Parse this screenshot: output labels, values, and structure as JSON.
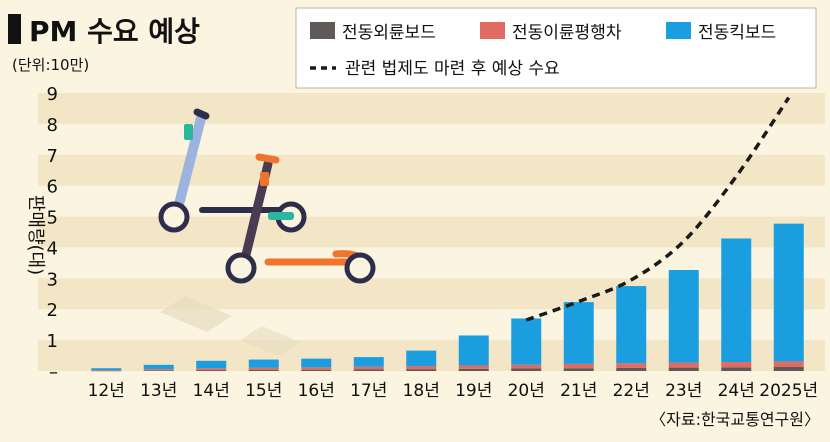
{
  "header": {
    "title": "PM 수요 예상",
    "unit": "(단위:10만)"
  },
  "source": "〈자료:한국교통연구원〉",
  "colors": {
    "background": "#fbf4e0",
    "band": "#f3e6c6",
    "wheel": "#5f5a57",
    "two_wheel": "#e06b63",
    "kickboard": "#1a9ee0",
    "forecast": "#1a1a1a"
  },
  "chart_data": {
    "type": "bar",
    "stacked": true,
    "title": "PM 수요 예상",
    "subtitle": "(단위:10만)",
    "xlabel": "",
    "ylabel": "판매량(대)",
    "ylim": [
      0,
      9
    ],
    "y_ticks": [
      "–",
      "1",
      "2",
      "3",
      "4",
      "5",
      "6",
      "7",
      "8",
      "9"
    ],
    "categories": [
      "12년",
      "13년",
      "14년",
      "15년",
      "16년",
      "17년",
      "18년",
      "19년",
      "20년",
      "21년",
      "22년",
      "23년",
      "24년",
      "2025년"
    ],
    "series": [
      {
        "name": "전동외륜보드",
        "color": "#5f5a57",
        "values": [
          0.01,
          0.02,
          0.03,
          0.04,
          0.04,
          0.05,
          0.06,
          0.07,
          0.08,
          0.09,
          0.1,
          0.11,
          0.12,
          0.13
        ]
      },
      {
        "name": "전동이륜평행차",
        "color": "#e06b63",
        "values": [
          0.02,
          0.04,
          0.06,
          0.07,
          0.08,
          0.09,
          0.1,
          0.11,
          0.12,
          0.14,
          0.15,
          0.16,
          0.17,
          0.18
        ]
      },
      {
        "name": "전동킥보드",
        "color": "#1a9ee0",
        "values": [
          0.06,
          0.14,
          0.24,
          0.26,
          0.28,
          0.31,
          0.5,
          0.97,
          1.5,
          2.0,
          2.5,
          3.0,
          4.0,
          4.46
        ]
      }
    ],
    "forecast": {
      "name": "관련 법제도 마련 후 예상 수요",
      "x": [
        "20년",
        "21년",
        "22년",
        "23년",
        "24년",
        "2025년"
      ],
      "values": [
        1.65,
        2.25,
        2.95,
        4.2,
        6.3,
        8.85
      ]
    },
    "legend_position": "top-right",
    "grid": "alternating horizontal bands"
  }
}
